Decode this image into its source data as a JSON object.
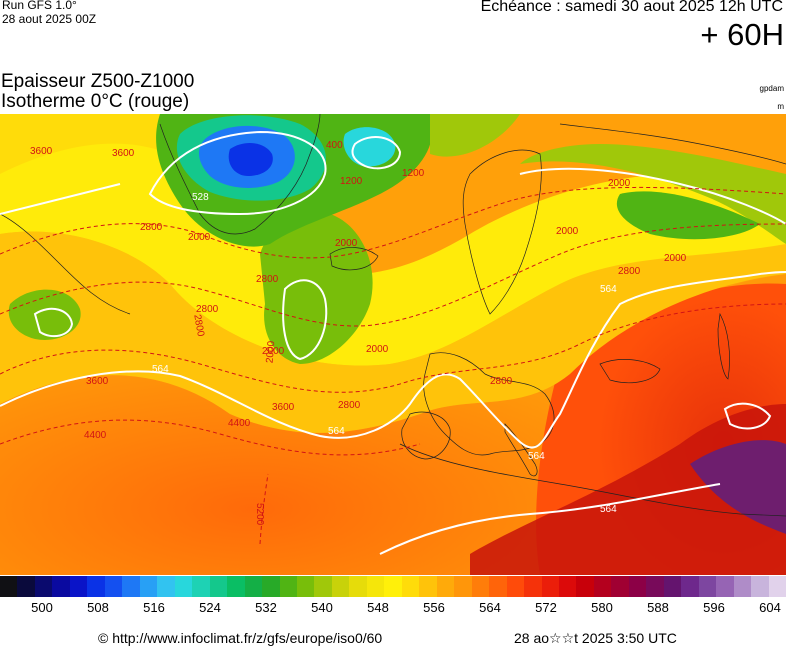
{
  "header": {
    "run_title": "Run GFS 1.0°",
    "run_date": "28 aout 2025 00Z",
    "forecast_time": "Echéance : samedi 30 aout 2025 12h UTC",
    "forecast_hour": "+ 60H"
  },
  "titles": {
    "line1": "Epaisseur Z500-Z1000",
    "line2": "Isotherme 0°C (rouge)"
  },
  "units": {
    "thickness": "gpdam",
    "isotherm": "m"
  },
  "map": {
    "thickness_contour_labels": [
      "528",
      "564",
      "564",
      "564",
      "564",
      "564"
    ],
    "isotherm_contour_labels": [
      "3600",
      "1200",
      "2800",
      "2000",
      "2000",
      "1200",
      "2000",
      "2000",
      "2000",
      "2800",
      "2800",
      "2800",
      "2000",
      "2000",
      "2800",
      "3600",
      "2800",
      "3600",
      "4400",
      "4400",
      "5200",
      "2800",
      "2000",
      "400",
      "3600"
    ]
  },
  "colorbar": {
    "ticks": [
      "500",
      "508",
      "516",
      "524",
      "532",
      "540",
      "548",
      "556",
      "564",
      "572",
      "580",
      "588",
      "596",
      "604"
    ],
    "colors": [
      "#101014",
      "#0a0a3c",
      "#0a0a6e",
      "#0a0aa0",
      "#0a14c8",
      "#0a32e6",
      "#1450f0",
      "#1e78f5",
      "#28a0f5",
      "#32c3f0",
      "#28d7dc",
      "#1ed2b4",
      "#14c88c",
      "#0abe64",
      "#14af46",
      "#28aa28",
      "#50b414",
      "#78be0a",
      "#a0c80a",
      "#c8d20a",
      "#e6dc0a",
      "#f5e60a",
      "#fff00a",
      "#ffdc0a",
      "#ffc30a",
      "#ffaa0a",
      "#ff960a",
      "#ff7d0a",
      "#ff640a",
      "#ff4b0a",
      "#f5320a",
      "#eb1e0a",
      "#dc0a0a",
      "#c8000a",
      "#b4001e",
      "#a00032",
      "#8c0046",
      "#780a5a",
      "#64146e",
      "#6e288c",
      "#7d46a0",
      "#9664b4",
      "#af8cc8",
      "#c8b4dc",
      "#e1d2eb"
    ]
  },
  "footer": {
    "source": "© http://www.infoclimat.fr/z/gfs/europe/iso0/60",
    "generated": "28 ao☆☆t 2025  3:50 UTC"
  }
}
